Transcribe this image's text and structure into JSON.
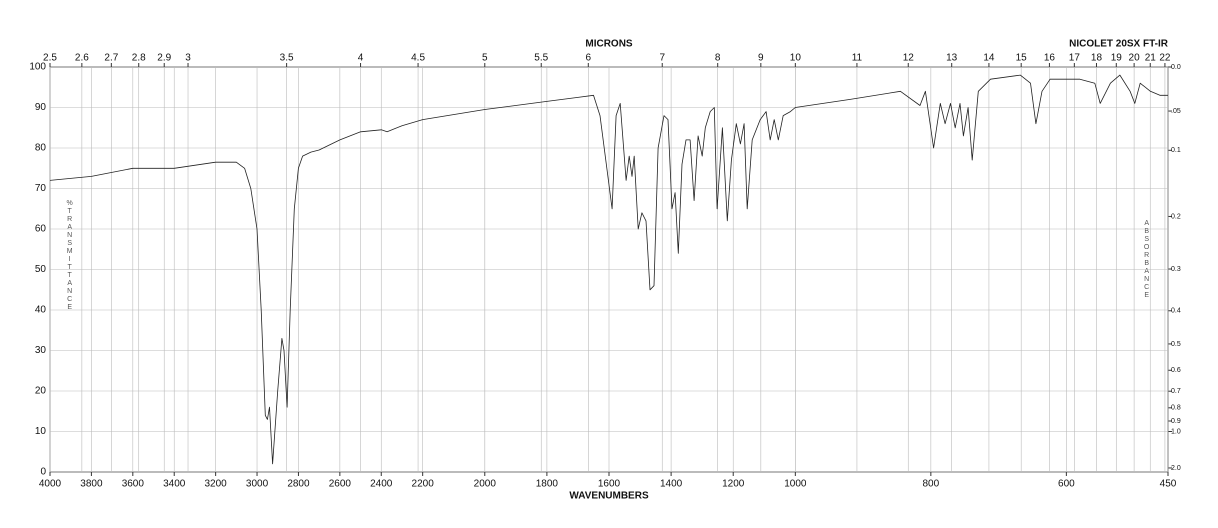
{
  "chart_data": {
    "type": "line",
    "title": "MICRONS",
    "subtitle": "NICOLET 20SX FT-IR",
    "x_label": "WAVENUMBERS",
    "y_label": "%TRANSMITTANCE",
    "y2_label": "ABSORBANCE",
    "xlim": [
      4000,
      450
    ],
    "x_scale_breaks": [
      2200,
      1000
    ],
    "xticks": [
      4000,
      3800,
      3600,
      3400,
      3200,
      3000,
      2800,
      2600,
      2400,
      2200,
      2000,
      1800,
      1600,
      1400,
      1200,
      1000,
      800,
      600,
      450
    ],
    "micron_ticks": [
      2.5,
      2.6,
      2.7,
      2.8,
      2.9,
      3,
      3.5,
      4,
      4.5,
      5,
      5.5,
      6,
      7,
      8,
      9,
      10,
      11,
      12,
      13,
      14,
      15,
      16,
      17,
      18,
      19,
      20,
      21,
      22
    ],
    "ylim": [
      0,
      100
    ],
    "yticks": [
      0,
      10,
      20,
      30,
      40,
      50,
      60,
      70,
      80,
      90,
      100
    ],
    "y2ticks": [
      {
        "value": 0,
        "label": "0.0"
      },
      {
        "value": 0.05,
        "label": ".05"
      },
      0.1,
      0.2,
      0.3,
      0.4,
      0.5,
      0.6,
      0.7,
      0.8,
      0.9,
      {
        "value": 1,
        "label": "1.0"
      },
      {
        "value": 2,
        "label": "2.0"
      }
    ],
    "grid": true,
    "x": [
      4000,
      3800,
      3600,
      3400,
      3200,
      3100,
      3060,
      3030,
      3000,
      2980,
      2960,
      2950,
      2940,
      2925,
      2900,
      2880,
      2870,
      2855,
      2840,
      2820,
      2800,
      2780,
      2740,
      2700,
      2600,
      2500,
      2400,
      2372,
      2300,
      2200,
      2000,
      1800,
      1700,
      1650,
      1629,
      1590,
      1577,
      1564,
      1545,
      1535,
      1526,
      1519,
      1506,
      1494,
      1481,
      1468,
      1455,
      1442,
      1423,
      1410,
      1397,
      1387,
      1377,
      1365,
      1352,
      1339,
      1326,
      1313,
      1300,
      1290,
      1274,
      1261,
      1252,
      1235,
      1219,
      1206,
      1190,
      1177,
      1165,
      1155,
      1139,
      1113,
      1094,
      1081,
      1068,
      1055,
      1039,
      1016,
      1000,
      919,
      845,
      816,
      808,
      796,
      786,
      779,
      771,
      764,
      757,
      752,
      745,
      739,
      730,
      712,
      668,
      653,
      645,
      636,
      624,
      580,
      558,
      550,
      535,
      521,
      506,
      499,
      491,
      476,
      462,
      450
    ],
    "series": [
      {
        "color": "#222222",
        "values": [
          72,
          73,
          75,
          75,
          76.5,
          76.5,
          75,
          70,
          60,
          40,
          14,
          13,
          16,
          2,
          20,
          33,
          30,
          16,
          40,
          65,
          75,
          78,
          79,
          79.5,
          82,
          84,
          84.5,
          84,
          85.5,
          87,
          89.5,
          91.5,
          92.5,
          93,
          88,
          65,
          88,
          91,
          72,
          78,
          73,
          78,
          60,
          64,
          62,
          45,
          46,
          80,
          88,
          87,
          65,
          69,
          54,
          76,
          82,
          82,
          67,
          83,
          78,
          85,
          89,
          90,
          65,
          85,
          62,
          77,
          86,
          81,
          86,
          65,
          82,
          87,
          89,
          82,
          87,
          82,
          88,
          89,
          90,
          92,
          94,
          90.5,
          94,
          80,
          91,
          86,
          91,
          85,
          91,
          83,
          90,
          77,
          94,
          97,
          98,
          96,
          86,
          94,
          97,
          97,
          96,
          91,
          96,
          98,
          94,
          91,
          96,
          94,
          93,
          93
        ]
      }
    ]
  }
}
